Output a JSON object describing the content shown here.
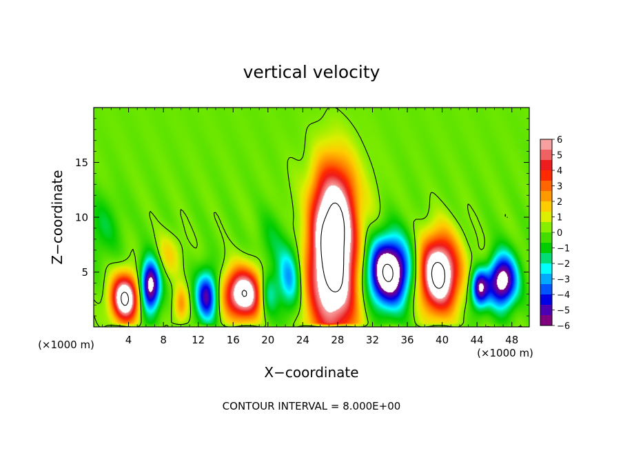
{
  "chart_data": {
    "type": "heatmap",
    "title": "vertical velocity",
    "xlabel": "X−coordinate",
    "ylabel": "Z−coordinate",
    "x_unit_left": "(×1000 m)",
    "x_unit_right": "(×1000 m)",
    "footer": "CONTOUR INTERVAL = 8.000E+00",
    "xlim": [
      0,
      50
    ],
    "ylim": [
      0,
      20
    ],
    "x_ticks": [
      4,
      8,
      12,
      16,
      20,
      24,
      28,
      32,
      36,
      40,
      44,
      48
    ],
    "y_ticks": [
      5,
      10,
      15
    ],
    "colorbar": {
      "min": -6,
      "max": 6,
      "labels": [
        "6",
        "5",
        "4",
        "3",
        "2",
        "1",
        "0",
        "−1",
        "−2",
        "−3",
        "−4",
        "−5",
        "−6"
      ],
      "colors": [
        "#800080",
        "#4b00b4",
        "#0000e6",
        "#0055ff",
        "#00aaff",
        "#00ffff",
        "#00dd77",
        "#00cc00",
        "#44dd00",
        "#88ee00",
        "#ddee00",
        "#ffcc00",
        "#ff9900",
        "#ff6600",
        "#ff2a00",
        "#ee1c1c",
        "#f06262",
        "#f8a0a0"
      ]
    },
    "features": [
      {
        "x": 27.5,
        "z": 6.0,
        "sx": 2.1,
        "sz": 5.0,
        "w": 9.5
      },
      {
        "x": 27.5,
        "z": 11.5,
        "sx": 2.4,
        "sz": 2.8,
        "w": 2.5
      },
      {
        "x": 39.6,
        "z": 4.8,
        "sx": 1.6,
        "sz": 2.4,
        "w": 9.0
      },
      {
        "x": 3.6,
        "z": 2.6,
        "sx": 1.1,
        "sz": 1.5,
        "w": 8.5
      },
      {
        "x": 17.2,
        "z": 3.0,
        "sx": 1.6,
        "sz": 1.6,
        "w": 8.0
      },
      {
        "x": 6.5,
        "z": 3.8,
        "sx": 0.8,
        "sz": 1.7,
        "w": -7.0
      },
      {
        "x": 13.0,
        "z": 2.8,
        "sx": 0.9,
        "sz": 1.6,
        "w": -5.5
      },
      {
        "x": 33.8,
        "z": 5.0,
        "sx": 1.8,
        "sz": 2.2,
        "w": -8.5
      },
      {
        "x": 46.9,
        "z": 4.2,
        "sx": 1.2,
        "sz": 1.7,
        "w": -7.0
      },
      {
        "x": 44.3,
        "z": 3.6,
        "sx": 0.7,
        "sz": 1.3,
        "w": -6.0
      },
      {
        "x": 22.5,
        "z": 4.5,
        "sx": 1.0,
        "sz": 2.2,
        "w": -3.5
      },
      {
        "x": 20.0,
        "z": 3.0,
        "sx": 0.8,
        "sz": 1.4,
        "w": -3.0
      },
      {
        "x": 10.0,
        "z": 2.0,
        "sx": 0.6,
        "sz": 1.2,
        "w": 2.5
      },
      {
        "x": 8.5,
        "z": 6.5,
        "sx": 1.2,
        "sz": 1.4,
        "w": 1.5
      },
      {
        "x": 44.5,
        "z": 5.5,
        "sx": 0.8,
        "sz": 1.2,
        "w": 1.2
      },
      {
        "x": 24.5,
        "z": 11.0,
        "sx": 1.0,
        "sz": 3.0,
        "w": -1.2
      },
      {
        "x": 30.5,
        "z": 10.0,
        "sx": 0.9,
        "sz": 3.0,
        "w": -1.0
      },
      {
        "x": 1.0,
        "z": 9.0,
        "sx": 1.5,
        "sz": 2.0,
        "w": -1.2
      },
      {
        "x": 20.5,
        "z": 8.0,
        "sx": 1.2,
        "sz": 2.0,
        "w": -1.0
      }
    ]
  }
}
